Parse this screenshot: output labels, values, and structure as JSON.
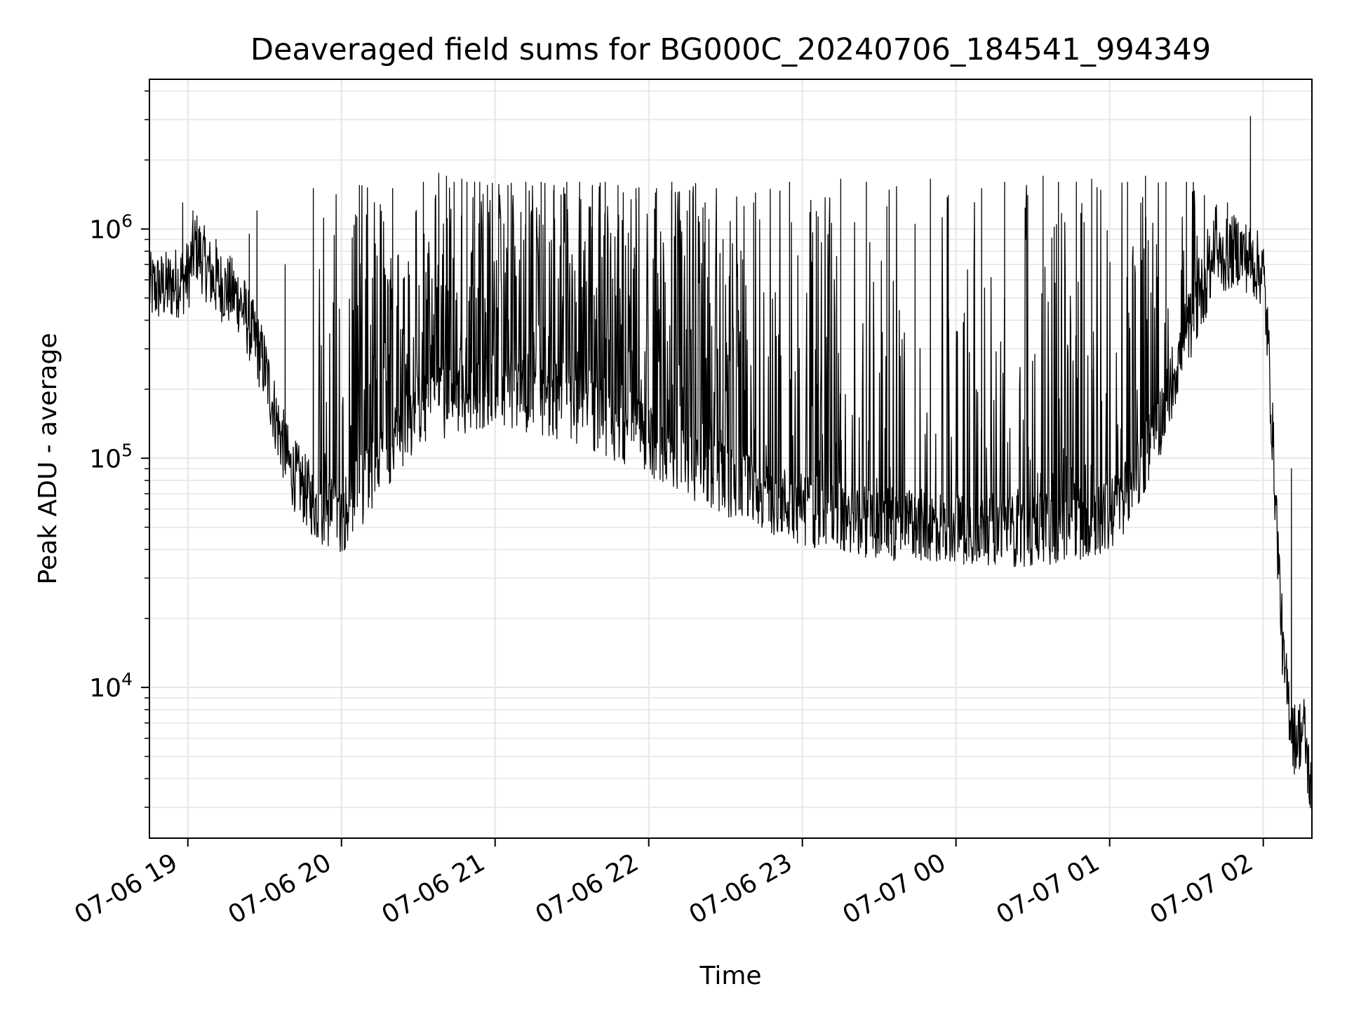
{
  "chart_data": {
    "type": "line",
    "title": "Deaveraged field sums for BG000C_20240706_184541_994349",
    "xlabel": "Time",
    "ylabel": "Peak ADU - average",
    "yscale": "log",
    "ylim": [
      2200,
      4500000
    ],
    "xlim": [
      "07-06 18:45",
      "07-07 02:19"
    ],
    "grid": true,
    "x_ticks": [
      "07-06 19",
      "07-06 20",
      "07-06 21",
      "07-06 22",
      "07-06 23",
      "07-07 00",
      "07-07 01",
      "07-07 02"
    ],
    "y_ticks": [
      {
        "value": 10000,
        "base": "10",
        "exp": "4"
      },
      {
        "value": 100000,
        "base": "10",
        "exp": "5"
      },
      {
        "value": 1000000,
        "base": "10",
        "exp": "6"
      }
    ],
    "series": [
      {
        "color": "#000000",
        "x": [
          "07-06 18:45",
          "07-06 18:52",
          "07-06 19:00",
          "07-06 19:03",
          "07-06 19:10",
          "07-06 19:20",
          "07-06 19:30",
          "07-06 19:35",
          "07-06 19:40",
          "07-06 19:50",
          "07-06 20:00",
          "07-06 20:30",
          "07-06 21:00",
          "07-06 21:30",
          "07-06 22:00",
          "07-06 22:30",
          "07-06 23:00",
          "07-06 23:30",
          "07-07 00:00",
          "07-07 00:30",
          "07-07 01:00",
          "07-07 01:10",
          "07-07 01:20",
          "07-07 01:30",
          "07-07 01:40",
          "07-07 01:50",
          "07-07 02:00",
          "07-07 02:02",
          "07-07 02:05",
          "07-07 02:08",
          "07-07 02:12",
          "07-07 02:16",
          "07-07 02:19"
        ],
        "y": [
          550000,
          560000,
          620000,
          850000,
          600000,
          500000,
          250000,
          140000,
          90000,
          62000,
          55000,
          160000,
          200000,
          170000,
          120000,
          80000,
          60000,
          52000,
          50000,
          48000,
          55000,
          80000,
          150000,
          350000,
          700000,
          820000,
          650000,
          300000,
          60000,
          12000,
          6000,
          6500,
          3200
        ]
      }
    ],
    "spikes": {
      "x": [
        "07-06 18:58",
        "07-06 19:02",
        "07-06 19:11",
        "07-06 19:24",
        "07-06 19:27",
        "07-06 19:38",
        "07-06 19:49",
        "07-06 20:07",
        "07-06 20:20",
        "07-06 20:32",
        "07-06 20:38",
        "07-06 20:41",
        "07-06 20:44",
        "07-06 20:47",
        "07-06 20:49",
        "07-06 20:52",
        "07-06 20:54",
        "07-06 20:57",
        "07-06 21:05",
        "07-06 21:12",
        "07-06 21:18",
        "07-06 21:23",
        "07-06 21:28",
        "07-06 21:33",
        "07-06 21:38",
        "07-06 21:43",
        "07-06 21:48",
        "07-06 21:55",
        "07-06 22:03",
        "07-06 22:09",
        "07-06 22:15",
        "07-06 22:22",
        "07-06 22:29",
        "07-06 22:36",
        "07-06 22:41",
        "07-06 22:55",
        "07-06 23:15",
        "07-06 23:25",
        "07-06 23:33",
        "07-06 23:44",
        "07-06 23:50",
        "07-06 23:57",
        "07-07 00:10",
        "07-07 00:19",
        "07-07 00:28",
        "07-07 00:34",
        "07-07 00:40",
        "07-07 00:47",
        "07-07 00:53",
        "07-07 01:07",
        "07-07 01:14",
        "07-07 01:22",
        "07-07 01:30",
        "07-07 01:37",
        "07-07 01:46",
        "07-07 01:55",
        "07-07 02:11"
      ],
      "peaks": [
        1300000,
        1200000,
        900000,
        950000,
        1200000,
        700000,
        1500000,
        1550000,
        1500000,
        1600000,
        1750000,
        1700000,
        1600000,
        1650000,
        1600000,
        1600000,
        1600000,
        1550000,
        1550000,
        1600000,
        1600000,
        1550000,
        1600000,
        1600000,
        1550000,
        1600000,
        1550000,
        1500000,
        1500000,
        1600000,
        1200000,
        1300000,
        900000,
        800000,
        1300000,
        1600000,
        1650000,
        1600000,
        1250000,
        1050000,
        1650000,
        1400000,
        1500000,
        1600000,
        1400000,
        1700000,
        1600000,
        1600000,
        1650000,
        1600000,
        1700000,
        1600000,
        1600000,
        1400000,
        1300000,
        3100000,
        90000
      ]
    }
  }
}
